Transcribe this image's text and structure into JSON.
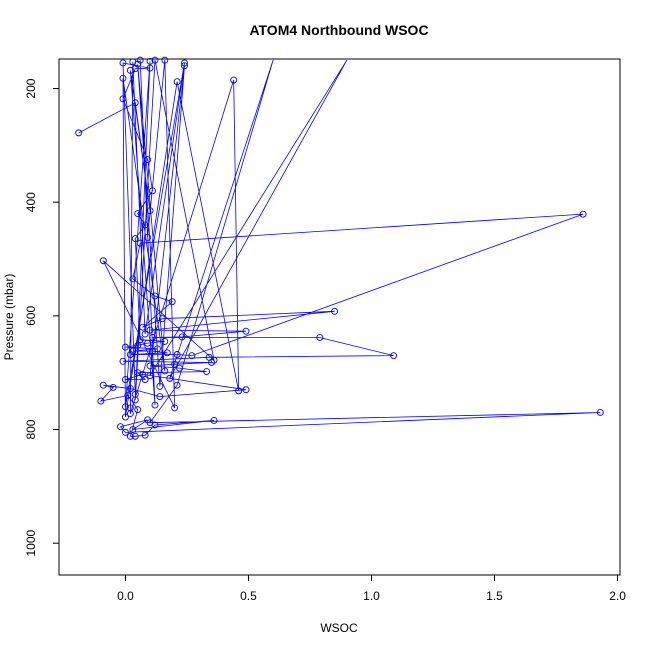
{
  "chart_data": {
    "type": "scatter",
    "title": "ATOM4 Northbound WSOC",
    "xlabel": "WSOC",
    "ylabel": "Pressure (mbar)",
    "xlim": [
      -0.27,
      2.01
    ],
    "ylim": [
      1056,
      148
    ],
    "y_reversed": true,
    "x_ticks": [
      0.0,
      0.5,
      1.0,
      1.5,
      2.0
    ],
    "x_tick_labels": [
      "0.0",
      "0.5",
      "1.0",
      "1.5",
      "2.0"
    ],
    "y_ticks": [
      200,
      400,
      600,
      800,
      1000
    ],
    "y_tick_labels": [
      "200",
      "400",
      "600",
      "800",
      "1000"
    ],
    "grid": false,
    "legend": "none",
    "colors": {
      "series": "#0000ff",
      "axes": "#000000"
    },
    "series": [
      {
        "marker": "open-circle",
        "connected": true,
        "points": [
          [
            0.02,
            812
          ],
          [
            0.04,
            812
          ],
          [
            0.08,
            810
          ],
          [
            0.0,
            805
          ],
          [
            0.03,
            800
          ],
          [
            -0.02,
            795
          ],
          [
            0.12,
            792
          ],
          [
            0.1,
            788
          ],
          [
            0.36,
            784
          ],
          [
            0.09,
            783
          ],
          [
            0.0,
            778
          ],
          [
            0.02,
            772
          ],
          [
            1.93,
            770
          ],
          [
            0.05,
            765
          ],
          [
            0.02,
            762
          ],
          [
            0.2,
            762
          ],
          [
            0.0,
            760
          ],
          [
            0.12,
            757
          ],
          [
            -0.1,
            750
          ],
          [
            0.04,
            748
          ],
          [
            0.14,
            742
          ],
          [
            0.01,
            740
          ],
          [
            0.04,
            738
          ],
          [
            0.46,
            732
          ],
          [
            0.49,
            730
          ],
          [
            -0.05,
            726
          ],
          [
            -0.09,
            722
          ],
          [
            0.21,
            722
          ],
          [
            0.14,
            724
          ],
          [
            0.02,
            728
          ],
          [
            0.0,
            712
          ],
          [
            0.08,
            712
          ],
          [
            0.18,
            710
          ],
          [
            0.1,
            705
          ],
          [
            0.07,
            703
          ],
          [
            0.05,
            700
          ],
          [
            0.33,
            698
          ],
          [
            0.16,
            697
          ],
          [
            0.22,
            692
          ],
          [
            0.1,
            688
          ],
          [
            0.2,
            685
          ],
          [
            0.35,
            682
          ],
          [
            -0.01,
            680
          ],
          [
            0.36,
            678
          ],
          [
            1.09,
            670
          ],
          [
            0.34,
            673
          ],
          [
            0.27,
            670
          ],
          [
            0.21,
            668
          ],
          [
            0.02,
            668
          ],
          [
            0.17,
            665
          ],
          [
            0.11,
            662
          ],
          [
            0.03,
            662
          ],
          [
            0.13,
            658
          ],
          [
            0.0,
            655
          ],
          [
            0.05,
            652
          ],
          [
            0.09,
            648
          ],
          [
            0.16,
            645
          ],
          [
            0.06,
            642
          ],
          [
            0.79,
            638
          ],
          [
            0.11,
            638
          ],
          [
            0.23,
            637
          ],
          [
            0.08,
            632
          ],
          [
            0.49,
            627
          ],
          [
            0.1,
            625
          ],
          [
            0.07,
            620
          ],
          [
            0.15,
            605
          ],
          [
            0.85,
            592
          ],
          [
            0.19,
            575
          ],
          [
            0.12,
            565
          ],
          [
            0.03,
            535
          ],
          [
            -0.09,
            503
          ],
          [
            0.06,
            472
          ],
          [
            0.04,
            464
          ],
          [
            0.09,
            462
          ],
          [
            0.08,
            440
          ],
          [
            0.05,
            420
          ],
          [
            1.86,
            421
          ],
          [
            0.1,
            415
          ],
          [
            0.11,
            380
          ],
          [
            0.09,
            325
          ],
          [
            -0.19,
            278
          ],
          [
            0.04,
            225
          ],
          [
            -0.01,
            218
          ],
          [
            0.21,
            188
          ],
          [
            0.44,
            185
          ],
          [
            -0.01,
            182
          ],
          [
            0.02,
            168
          ],
          [
            0.04,
            165
          ],
          [
            0.1,
            164
          ],
          [
            0.24,
            160
          ],
          [
            0.05,
            157
          ],
          [
            -0.01,
            155
          ],
          [
            0.03,
            153
          ],
          [
            0.1,
            152
          ],
          [
            0.12,
            150
          ],
          [
            0.06,
            150
          ],
          [
            0.16,
            150
          ],
          [
            0.24,
            155
          ]
        ],
        "path_order": [
          [
            -0.19,
            278
          ],
          [
            0.04,
            225
          ],
          [
            0.1,
            415
          ],
          [
            0.02,
            168
          ],
          [
            0.12,
            757
          ],
          [
            0.06,
            150
          ],
          [
            0.09,
            462
          ],
          [
            0.16,
            150
          ],
          [
            0.2,
            762
          ],
          [
            -0.09,
            503
          ],
          [
            0.36,
            678
          ],
          [
            0.12,
            150
          ],
          [
            0.04,
            748
          ],
          [
            0.1,
            152
          ],
          [
            0.0,
            760
          ],
          [
            0.24,
            155
          ],
          [
            0.08,
            632
          ],
          [
            0.03,
            153
          ],
          [
            0.02,
            772
          ],
          [
            0.44,
            185
          ],
          [
            0.46,
            732
          ],
          [
            0.21,
            188
          ],
          [
            0.0,
            778
          ],
          [
            -0.01,
            182
          ],
          [
            0.16,
            697
          ],
          [
            0.05,
            157
          ],
          [
            0.14,
            724
          ],
          [
            0.24,
            160
          ],
          [
            0.1,
            705
          ],
          [
            0.9,
            150
          ],
          [
            0.18,
            710
          ],
          [
            0.6,
            150
          ],
          [
            0.21,
            722
          ],
          [
            0.1,
            788
          ],
          [
            1.93,
            770
          ],
          [
            0.0,
            805
          ],
          [
            -0.02,
            795
          ],
          [
            0.09,
            783
          ],
          [
            0.03,
            800
          ],
          [
            0.36,
            784
          ],
          [
            0.12,
            792
          ],
          [
            0.08,
            810
          ],
          [
            0.04,
            812
          ],
          [
            0.02,
            812
          ],
          [
            0.05,
            765
          ],
          [
            0.01,
            740
          ],
          [
            -0.1,
            750
          ],
          [
            -0.05,
            726
          ],
          [
            -0.09,
            722
          ],
          [
            0.02,
            728
          ],
          [
            0.14,
            742
          ],
          [
            0.49,
            730
          ],
          [
            0.07,
            703
          ],
          [
            0.0,
            712
          ],
          [
            0.08,
            712
          ],
          [
            0.05,
            700
          ],
          [
            0.33,
            698
          ],
          [
            0.22,
            692
          ],
          [
            0.1,
            688
          ],
          [
            0.2,
            685
          ],
          [
            0.35,
            682
          ],
          [
            -0.01,
            680
          ],
          [
            0.34,
            673
          ],
          [
            1.09,
            670
          ],
          [
            0.79,
            638
          ],
          [
            0.11,
            638
          ],
          [
            0.23,
            637
          ],
          [
            0.49,
            627
          ],
          [
            0.1,
            625
          ],
          [
            0.85,
            592
          ],
          [
            0.15,
            605
          ],
          [
            0.07,
            620
          ],
          [
            0.19,
            575
          ],
          [
            0.12,
            565
          ],
          [
            0.03,
            535
          ],
          [
            0.06,
            472
          ],
          [
            1.86,
            421
          ],
          [
            0.27,
            670
          ],
          [
            0.21,
            668
          ],
          [
            0.02,
            668
          ],
          [
            0.17,
            665
          ],
          [
            0.11,
            662
          ],
          [
            0.03,
            662
          ],
          [
            0.13,
            658
          ],
          [
            0.0,
            655
          ],
          [
            0.05,
            652
          ],
          [
            0.09,
            648
          ],
          [
            0.16,
            645
          ],
          [
            0.06,
            642
          ],
          [
            0.04,
            464
          ],
          [
            0.08,
            440
          ],
          [
            0.05,
            420
          ],
          [
            0.11,
            380
          ],
          [
            0.09,
            325
          ],
          [
            -0.01,
            218
          ],
          [
            0.04,
            165
          ],
          [
            0.1,
            164
          ],
          [
            -0.01,
            155
          ],
          [
            0.04,
            738
          ]
        ]
      }
    ]
  }
}
